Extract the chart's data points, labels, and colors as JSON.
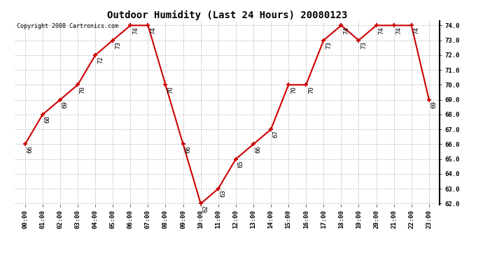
{
  "title": "Outdoor Humidity (Last 24 Hours) 20080123",
  "copyright": "Copyright 2008 Cartronics.com",
  "hours": [
    0,
    1,
    2,
    3,
    4,
    5,
    6,
    7,
    8,
    9,
    10,
    11,
    12,
    13,
    14,
    15,
    16,
    17,
    18,
    19,
    20,
    21,
    22,
    23
  ],
  "values": [
    66,
    68,
    69,
    70,
    72,
    73,
    74,
    74,
    70,
    66,
    62,
    63,
    65,
    66,
    67,
    70,
    70,
    73,
    74,
    73,
    74,
    74,
    74,
    69
  ],
  "ylim_min": 62.0,
  "ylim_max": 74.0,
  "ytick_step": 1.0,
  "line_color": "#cc0000",
  "marker_color": "#cc0000",
  "bg_color": "#ffffff",
  "grid_color": "#bbbbbb",
  "title_fontsize": 10,
  "label_fontsize": 6.5,
  "tick_fontsize": 6.5,
  "copyright_fontsize": 6,
  "fig_width": 6.9,
  "fig_height": 3.75,
  "dpi": 100
}
